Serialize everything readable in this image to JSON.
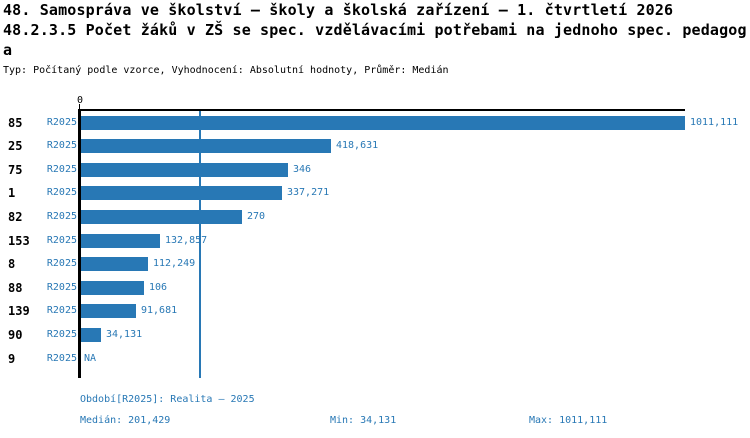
{
  "chart_data": {
    "type": "bar",
    "orientation": "horizontal",
    "title_line1": "48. Samospráva ve školství – školy a školská zařízení – 1. čtvrtletí 2026",
    "title_line2": "48.2.3.5 Počet žáků v ZŠ se spec. vzdělávacími potřebami na jednoho spec. pedagog",
    "title_line2_wrap": "a",
    "meta": "Typ: Počítaný podle vzorce, Vyhodnocení: Absolutní hodnoty, Průměr: Medián",
    "series_label": "R2025",
    "value_axis": {
      "zero_label": "0",
      "min": 0,
      "max": 1011.111
    },
    "median_value": 201.429,
    "categories": [
      "85",
      "25",
      "75",
      "1",
      "82",
      "153",
      "8",
      "88",
      "139",
      "90",
      "9"
    ],
    "rows": [
      {
        "category": "85",
        "period": "R2025",
        "value": 1011.111,
        "value_label": "1011,111"
      },
      {
        "category": "25",
        "period": "R2025",
        "value": 418.631,
        "value_label": "418,631"
      },
      {
        "category": "75",
        "period": "R2025",
        "value": 346,
        "value_label": "346"
      },
      {
        "category": "1",
        "period": "R2025",
        "value": 337.271,
        "value_label": "337,271"
      },
      {
        "category": "82",
        "period": "R2025",
        "value": 270,
        "value_label": "270"
      },
      {
        "category": "153",
        "period": "R2025",
        "value": 132.857,
        "value_label": "132,857"
      },
      {
        "category": "8",
        "period": "R2025",
        "value": 112.249,
        "value_label": "112,249"
      },
      {
        "category": "88",
        "period": "R2025",
        "value": 106,
        "value_label": "106"
      },
      {
        "category": "139",
        "period": "R2025",
        "value": 91.681,
        "value_label": "91,681"
      },
      {
        "category": "90",
        "period": "R2025",
        "value": 34.131,
        "value_label": "34,131"
      },
      {
        "category": "9",
        "period": "R2025",
        "value": null,
        "value_label": "NA"
      }
    ],
    "footer": {
      "period_label": "Období[R2025]: Realita – 2025",
      "median_label": "Medián: 201,429",
      "min_label": "Min: 34,131",
      "max_label": "Max: 1011,111"
    },
    "stats": {
      "median": 201.429,
      "min": 34.131,
      "max": 1011.111
    },
    "colors": {
      "bar": "#2878b5",
      "blue_text": "#2878b5",
      "axis": "#000000",
      "background": "#ffffff"
    },
    "legend_position": "none",
    "grid": "median-line-only"
  }
}
